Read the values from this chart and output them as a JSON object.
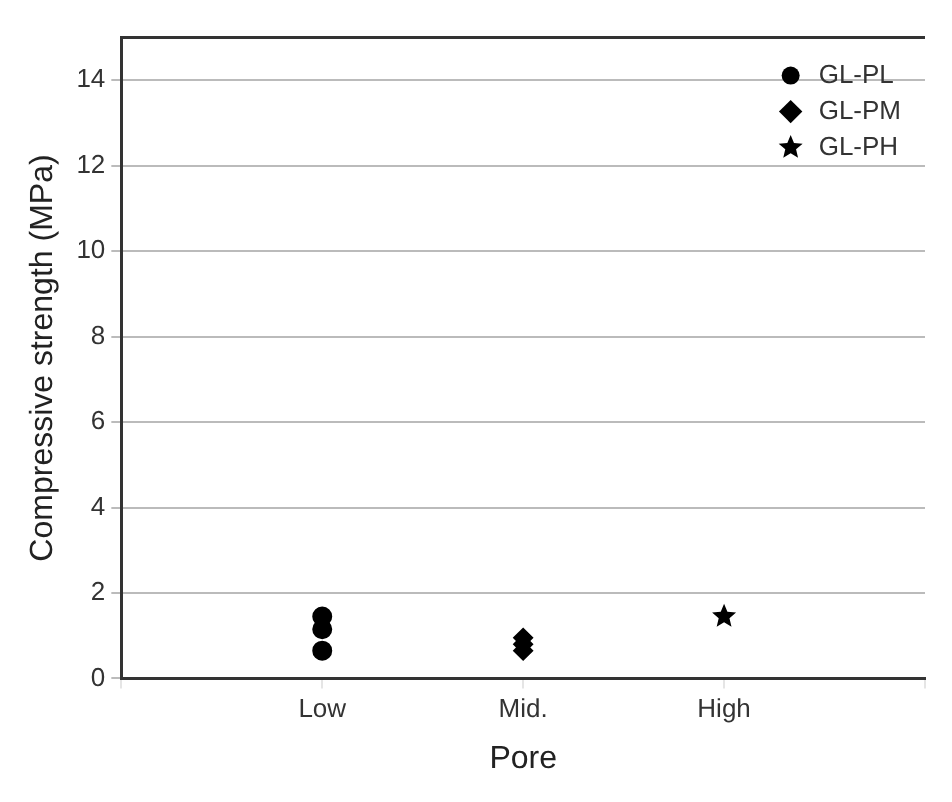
{
  "chart_data": {
    "type": "scatter",
    "xlabel": "Pore",
    "ylabel": "Compressive strength (MPa)",
    "categories": [
      null,
      "Low",
      "Mid.",
      "High",
      null
    ],
    "series": [
      {
        "name": "GL-PL",
        "color": "#000000",
        "marker": "circle",
        "x": [
          "Low",
          "Low",
          "Low"
        ],
        "values": [
          1.45,
          1.15,
          0.65
        ]
      },
      {
        "name": "GL-PM",
        "color": "#000000",
        "marker": "diamond",
        "x": [
          "Mid.",
          "Mid.",
          "Mid."
        ],
        "values": [
          0.95,
          0.8,
          0.65
        ]
      },
      {
        "name": "GL-PH",
        "color": "#000000",
        "marker": "star",
        "x": [
          "High"
        ],
        "values": [
          1.45
        ]
      }
    ],
    "ylim": [
      0,
      15
    ],
    "yticks": [
      0,
      2,
      4,
      6,
      8,
      10,
      12,
      14
    ],
    "grid": "y",
    "legend": "top right"
  }
}
